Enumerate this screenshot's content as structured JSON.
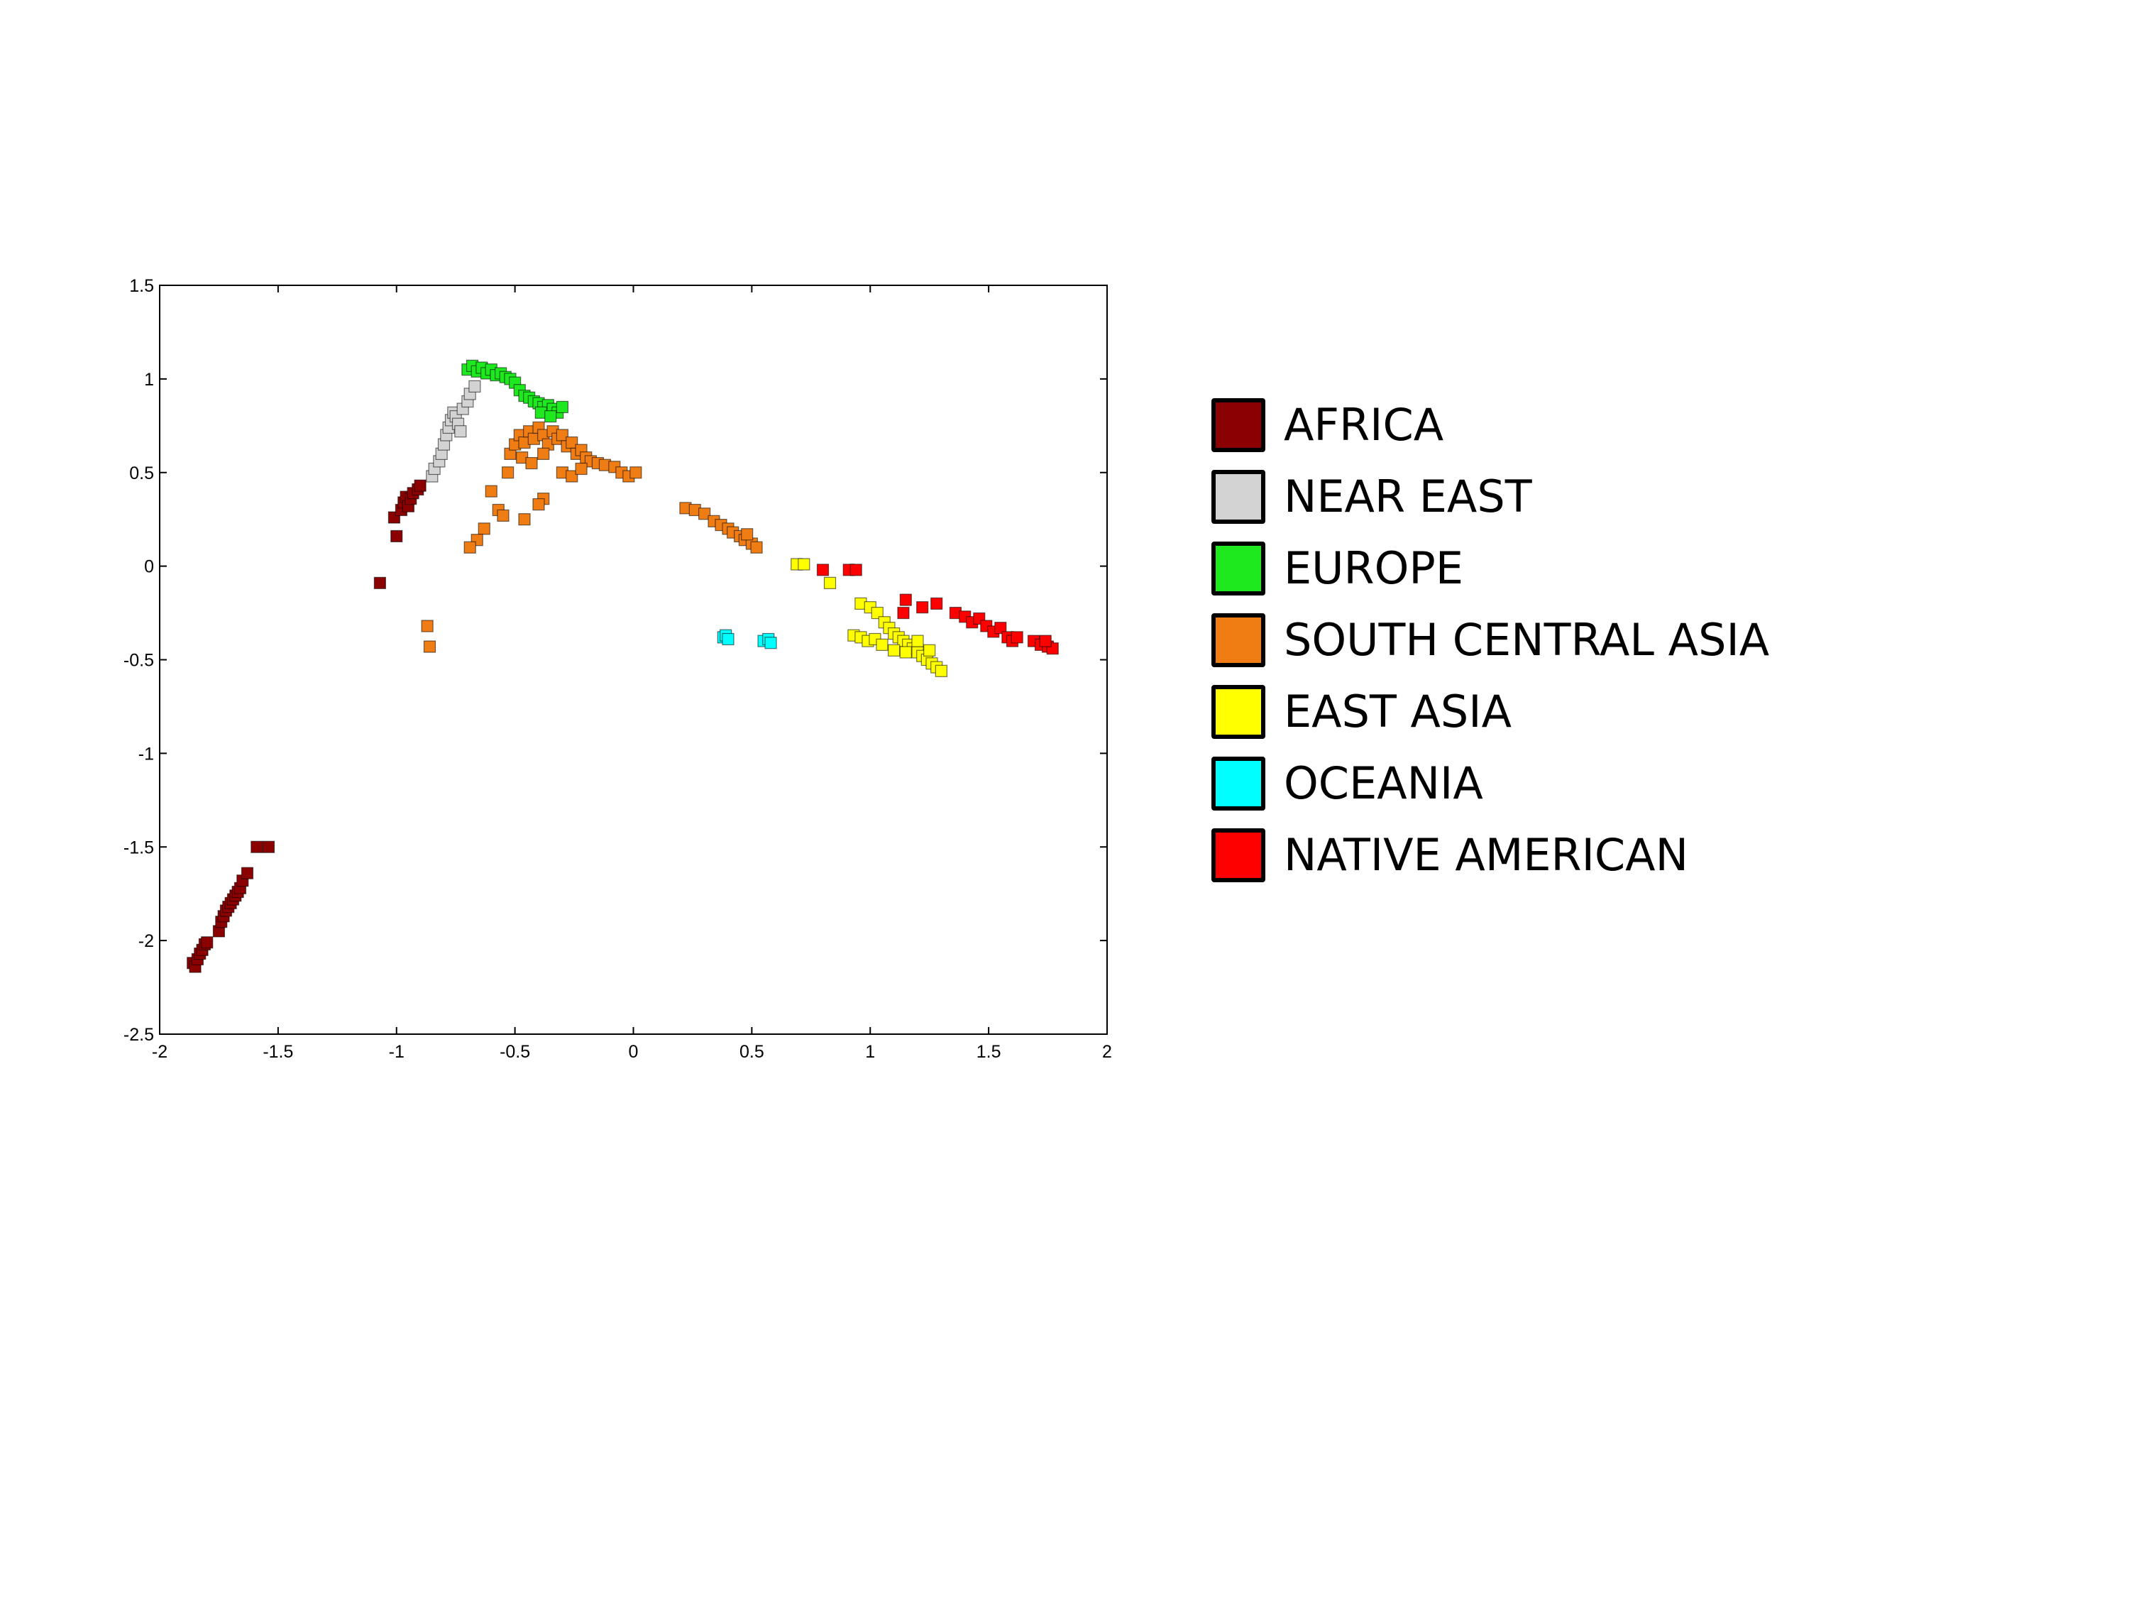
{
  "chart_data": {
    "type": "scatter",
    "title": "",
    "xlabel": "",
    "ylabel": "",
    "xlim": [
      -2,
      2
    ],
    "ylim": [
      -2.5,
      1.5
    ],
    "xticks": [
      "-2",
      "-1.5",
      "-1",
      "-0.5",
      "0",
      "0.5",
      "1",
      "1.5",
      "2"
    ],
    "yticks": [
      "1.5",
      "1",
      "0.5",
      "0",
      "-0.5",
      "-1",
      "-1.5",
      "-2",
      "-2.5"
    ],
    "grid": false,
    "legend_position": "right",
    "series": [
      {
        "name": "AFRICA",
        "color": "#8b0000",
        "points": [
          [
            -1.86,
            -2.12
          ],
          [
            -1.85,
            -2.14
          ],
          [
            -1.84,
            -2.1
          ],
          [
            -1.83,
            -2.07
          ],
          [
            -1.82,
            -2.05
          ],
          [
            -1.81,
            -2.02
          ],
          [
            -1.8,
            -2.01
          ],
          [
            -1.75,
            -1.95
          ],
          [
            -1.74,
            -1.9
          ],
          [
            -1.73,
            -1.87
          ],
          [
            -1.72,
            -1.84
          ],
          [
            -1.71,
            -1.82
          ],
          [
            -1.7,
            -1.8
          ],
          [
            -1.69,
            -1.78
          ],
          [
            -1.68,
            -1.76
          ],
          [
            -1.67,
            -1.74
          ],
          [
            -1.66,
            -1.72
          ],
          [
            -1.65,
            -1.68
          ],
          [
            -1.63,
            -1.64
          ],
          [
            -1.59,
            -1.5
          ],
          [
            -1.54,
            -1.5
          ],
          [
            -1.01,
            0.26
          ],
          [
            -1.0,
            0.16
          ],
          [
            -0.98,
            0.3
          ],
          [
            -0.97,
            0.34
          ],
          [
            -0.96,
            0.37
          ],
          [
            -0.95,
            0.32
          ],
          [
            -0.94,
            0.36
          ],
          [
            -0.93,
            0.39
          ],
          [
            -0.91,
            0.41
          ],
          [
            -0.9,
            0.43
          ],
          [
            -1.07,
            -0.09
          ]
        ]
      },
      {
        "name": "NEAR EAST",
        "color": "#d3d3d3",
        "points": [
          [
            -0.85,
            0.48
          ],
          [
            -0.84,
            0.52
          ],
          [
            -0.82,
            0.56
          ],
          [
            -0.81,
            0.6
          ],
          [
            -0.8,
            0.65
          ],
          [
            -0.79,
            0.7
          ],
          [
            -0.78,
            0.74
          ],
          [
            -0.77,
            0.78
          ],
          [
            -0.76,
            0.82
          ],
          [
            -0.75,
            0.8
          ],
          [
            -0.74,
            0.76
          ],
          [
            -0.73,
            0.72
          ],
          [
            -0.72,
            0.84
          ],
          [
            -0.7,
            0.88
          ],
          [
            -0.69,
            0.92
          ],
          [
            -0.67,
            0.96
          ]
        ]
      },
      {
        "name": "EUROPE",
        "color": "#1ee81e",
        "points": [
          [
            -0.7,
            1.05
          ],
          [
            -0.68,
            1.07
          ],
          [
            -0.66,
            1.04
          ],
          [
            -0.64,
            1.06
          ],
          [
            -0.62,
            1.03
          ],
          [
            -0.6,
            1.05
          ],
          [
            -0.58,
            1.02
          ],
          [
            -0.56,
            1.03
          ],
          [
            -0.54,
            1.01
          ],
          [
            -0.52,
            1.0
          ],
          [
            -0.5,
            0.98
          ],
          [
            -0.48,
            0.94
          ],
          [
            -0.46,
            0.91
          ],
          [
            -0.44,
            0.9
          ],
          [
            -0.42,
            0.88
          ],
          [
            -0.4,
            0.87
          ],
          [
            -0.38,
            0.85
          ],
          [
            -0.36,
            0.86
          ],
          [
            -0.34,
            0.84
          ],
          [
            -0.32,
            0.82
          ],
          [
            -0.3,
            0.85
          ],
          [
            -0.39,
            0.82
          ],
          [
            -0.35,
            0.8
          ]
        ]
      },
      {
        "name": "SOUTH CENTRAL ASIA",
        "color": "#f07d14",
        "points": [
          [
            -0.52,
            0.6
          ],
          [
            -0.5,
            0.65
          ],
          [
            -0.48,
            0.7
          ],
          [
            -0.46,
            0.66
          ],
          [
            -0.44,
            0.72
          ],
          [
            -0.42,
            0.68
          ],
          [
            -0.4,
            0.74
          ],
          [
            -0.38,
            0.7
          ],
          [
            -0.36,
            0.65
          ],
          [
            -0.34,
            0.72
          ],
          [
            -0.32,
            0.68
          ],
          [
            -0.3,
            0.7
          ],
          [
            -0.28,
            0.64
          ],
          [
            -0.26,
            0.66
          ],
          [
            -0.24,
            0.6
          ],
          [
            -0.22,
            0.62
          ],
          [
            -0.2,
            0.58
          ],
          [
            -0.18,
            0.56
          ],
          [
            -0.15,
            0.55
          ],
          [
            -0.12,
            0.54
          ],
          [
            -0.08,
            0.53
          ],
          [
            -0.05,
            0.5
          ],
          [
            -0.02,
            0.48
          ],
          [
            0.01,
            0.5
          ],
          [
            -0.53,
            0.5
          ],
          [
            -0.47,
            0.58
          ],
          [
            -0.43,
            0.55
          ],
          [
            -0.38,
            0.6
          ],
          [
            -0.3,
            0.5
          ],
          [
            -0.26,
            0.48
          ],
          [
            -0.22,
            0.52
          ],
          [
            -0.38,
            0.36
          ],
          [
            -0.6,
            0.4
          ],
          [
            -0.63,
            0.2
          ],
          [
            -0.66,
            0.14
          ],
          [
            -0.69,
            0.1
          ],
          [
            -0.46,
            0.25
          ],
          [
            -0.57,
            0.3
          ],
          [
            -0.4,
            0.33
          ],
          [
            -0.55,
            0.27
          ],
          [
            -0.87,
            -0.32
          ],
          [
            -0.86,
            -0.43
          ],
          [
            0.22,
            0.31
          ],
          [
            0.26,
            0.3
          ],
          [
            0.3,
            0.28
          ],
          [
            0.34,
            0.24
          ],
          [
            0.37,
            0.22
          ],
          [
            0.4,
            0.2
          ],
          [
            0.42,
            0.18
          ],
          [
            0.45,
            0.16
          ],
          [
            0.47,
            0.14
          ],
          [
            0.5,
            0.12
          ],
          [
            0.52,
            0.1
          ],
          [
            0.48,
            0.17
          ]
        ]
      },
      {
        "name": "EAST ASIA",
        "color": "#ffff00",
        "points": [
          [
            0.69,
            0.01
          ],
          [
            0.72,
            0.01
          ],
          [
            0.83,
            -0.09
          ],
          [
            0.93,
            -0.37
          ],
          [
            0.96,
            -0.38
          ],
          [
            0.99,
            -0.4
          ],
          [
            1.02,
            -0.39
          ],
          [
            0.96,
            -0.2
          ],
          [
            1.0,
            -0.22
          ],
          [
            1.03,
            -0.25
          ],
          [
            1.06,
            -0.3
          ],
          [
            1.08,
            -0.33
          ],
          [
            1.1,
            -0.36
          ],
          [
            1.12,
            -0.38
          ],
          [
            1.14,
            -0.4
          ],
          [
            1.16,
            -0.42
          ],
          [
            1.18,
            -0.44
          ],
          [
            1.2,
            -0.46
          ],
          [
            1.22,
            -0.48
          ],
          [
            1.24,
            -0.5
          ],
          [
            1.26,
            -0.52
          ],
          [
            1.28,
            -0.54
          ],
          [
            1.3,
            -0.56
          ],
          [
            1.15,
            -0.46
          ],
          [
            1.1,
            -0.45
          ],
          [
            1.2,
            -0.4
          ],
          [
            1.25,
            -0.45
          ],
          [
            1.05,
            -0.42
          ]
        ]
      },
      {
        "name": "OCEANIA",
        "color": "#00ffff",
        "points": [
          [
            0.38,
            -0.38
          ],
          [
            0.39,
            -0.37
          ],
          [
            0.4,
            -0.39
          ],
          [
            0.55,
            -0.4
          ],
          [
            0.57,
            -0.39
          ],
          [
            0.58,
            -0.41
          ]
        ]
      },
      {
        "name": "NATIVE AMERICAN",
        "color": "#ff0000",
        "points": [
          [
            0.8,
            -0.02
          ],
          [
            0.91,
            -0.02
          ],
          [
            0.94,
            -0.02
          ],
          [
            1.15,
            -0.18
          ],
          [
            1.14,
            -0.25
          ],
          [
            1.22,
            -0.22
          ],
          [
            1.28,
            -0.2
          ],
          [
            1.36,
            -0.25
          ],
          [
            1.4,
            -0.27
          ],
          [
            1.43,
            -0.3
          ],
          [
            1.46,
            -0.28
          ],
          [
            1.49,
            -0.32
          ],
          [
            1.52,
            -0.35
          ],
          [
            1.55,
            -0.33
          ],
          [
            1.58,
            -0.38
          ],
          [
            1.6,
            -0.4
          ],
          [
            1.62,
            -0.38
          ],
          [
            1.69,
            -0.4
          ],
          [
            1.72,
            -0.42
          ],
          [
            1.75,
            -0.43
          ],
          [
            1.77,
            -0.44
          ],
          [
            1.74,
            -0.4
          ]
        ]
      }
    ]
  }
}
